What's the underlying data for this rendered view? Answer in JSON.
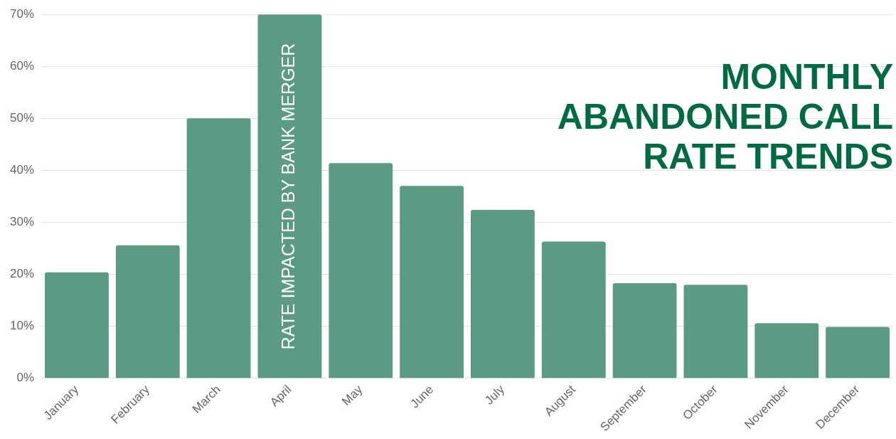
{
  "chart_data": {
    "type": "bar",
    "title": "MONTHLY ABANDONED CALL RATE TRENDS",
    "categories": [
      "January",
      "February",
      "March",
      "April",
      "May",
      "June",
      "July",
      "August",
      "September",
      "October",
      "November",
      "December"
    ],
    "values": [
      20.4,
      25.6,
      50,
      70,
      41.4,
      37,
      32.4,
      26.3,
      18.3,
      18,
      10.6,
      9.9
    ],
    "color": "#5b9b84",
    "ylim": [
      0,
      70
    ],
    "yticks": [
      {
        "value": 0,
        "label": "0%"
      },
      {
        "value": 10,
        "label": "10%"
      },
      {
        "value": 20,
        "label": "20%"
      },
      {
        "value": 30,
        "label": "30%"
      },
      {
        "value": 40,
        "label": "40%"
      },
      {
        "value": 50,
        "label": "50%"
      },
      {
        "value": 60,
        "label": "60%"
      },
      {
        "value": 70,
        "label": "70%"
      }
    ],
    "grid": "y",
    "legend": false,
    "annotations": [
      "RATE IMPACTED BY BANK MERGER"
    ]
  }
}
